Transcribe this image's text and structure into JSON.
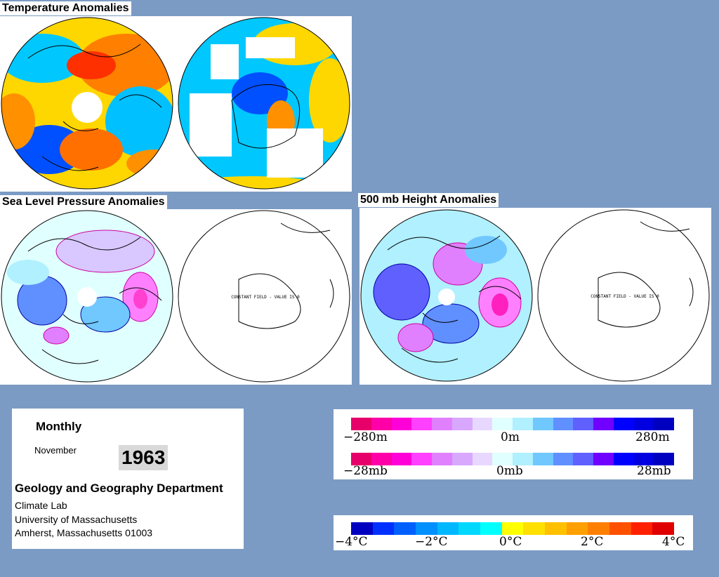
{
  "titles": {
    "temperature": "Temperature Anomalies",
    "slp": "Sea Level Pressure Anomalies",
    "height500": "500 mb Height Anomalies"
  },
  "map_note": "CONSTANT FIELD - VALUE IS 0",
  "info": {
    "period": "Monthly",
    "month": "November",
    "year": "1963",
    "department": "Geology and Geography Department",
    "line1": "Climate Lab",
    "line2": "University of Massachusetts",
    "line3": "Amherst, Massachusetts 01003"
  },
  "legend_height": {
    "labels": [
      "−280m",
      "0m",
      "280m"
    ],
    "colors": [
      "#e8006a",
      "#ff00a8",
      "#ff00d8",
      "#ff40ff",
      "#e080ff",
      "#d8a8ff",
      "#e8d8ff",
      "#e0ffff",
      "#b0f0ff",
      "#70c8ff",
      "#6090ff",
      "#6060ff",
      "#7000ff",
      "#0000ff",
      "#0000e0",
      "#0000c0"
    ]
  },
  "legend_pressure": {
    "labels": [
      "−28mb",
      "0mb",
      "28mb"
    ]
  },
  "legend_temperature": {
    "labels": [
      "−4°C",
      "−2°C",
      "0°C",
      "2°C",
      "4°C"
    ],
    "colors": [
      "#0000c0",
      "#0030ff",
      "#0060ff",
      "#0090ff",
      "#00b8ff",
      "#00d8ff",
      "#00ffff",
      "#ffff00",
      "#ffe000",
      "#ffc000",
      "#ffa000",
      "#ff8000",
      "#ff5000",
      "#ff2000",
      "#e00000"
    ]
  }
}
